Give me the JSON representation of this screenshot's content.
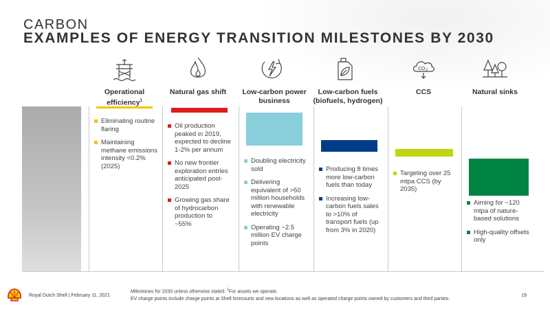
{
  "header": {
    "kicker": "CARBON",
    "title": "EXAMPLES OF ENERGY TRANSITION MILESTONES BY 2030"
  },
  "columns": [
    {
      "heading": "Operational efficiency",
      "footnote": "1",
      "icon": "offshore-platform-icon",
      "color": "#f5c400",
      "bar_level": 0.02,
      "items": [
        "Eliminating routine flaring",
        "Maintaining methane emissions intensity <0.2% (2025)"
      ]
    },
    {
      "heading": "Natural gas shift",
      "icon": "flame-icon",
      "color": "#dd1d21",
      "bar_level": 0.04,
      "items": [
        "Oil production peaked in 2019, expected to decline 1-2% per annum",
        "No new frontier exploration entries anticipated post-2025",
        "Growing gas share of hydrocarbon production to ~55%"
      ]
    },
    {
      "heading": "Low-carbon power business",
      "icon": "power-globe-icon",
      "color": "#89cfdc",
      "bar_level": 0.42,
      "items": [
        "Doubling electricity sold",
        "Delivering equivalent of >50 million households with renewable electricity",
        "Operating ~2.5 million EV charge points"
      ]
    },
    {
      "heading": "Low-carbon fuels (biofuels, hydrogen)",
      "icon": "fuel-can-leaf-icon",
      "color": "#003c88",
      "bar_level": 0.18,
      "items": [
        "Producing 8 times more low-carbon fuels than today",
        "Increasing low-carbon fuels sales to >10% of transport fuels (up from 3% in 2020)"
      ]
    },
    {
      "heading": "CCS",
      "icon": "co2-cloud-icon",
      "color": "#bed50f",
      "bar_level": 0.11,
      "items": [
        "Targeting over 25 mtpa CCS (by 2035)"
      ]
    },
    {
      "heading": "Natural sinks",
      "icon": "trees-icon",
      "color": "#008443",
      "bar_level": 0.49,
      "items": [
        "Aiming for ~120 mtpa of nature-based solutions",
        "High-quality offsets only"
      ]
    }
  ],
  "footer": {
    "company": "Royal Dutch Shell | February 11, 2021",
    "note_line1": "Milestones for 2030 unless otherwise stated.",
    "note_footnote_marker": "1",
    "note_line1b": "For assets we operate.",
    "note_line2": "EV charge points include charge points at Shell forecourts and new locations as well as operated charge points owned by customers and third parties.",
    "page_number": "19"
  },
  "logo": "shell-pecten-logo"
}
